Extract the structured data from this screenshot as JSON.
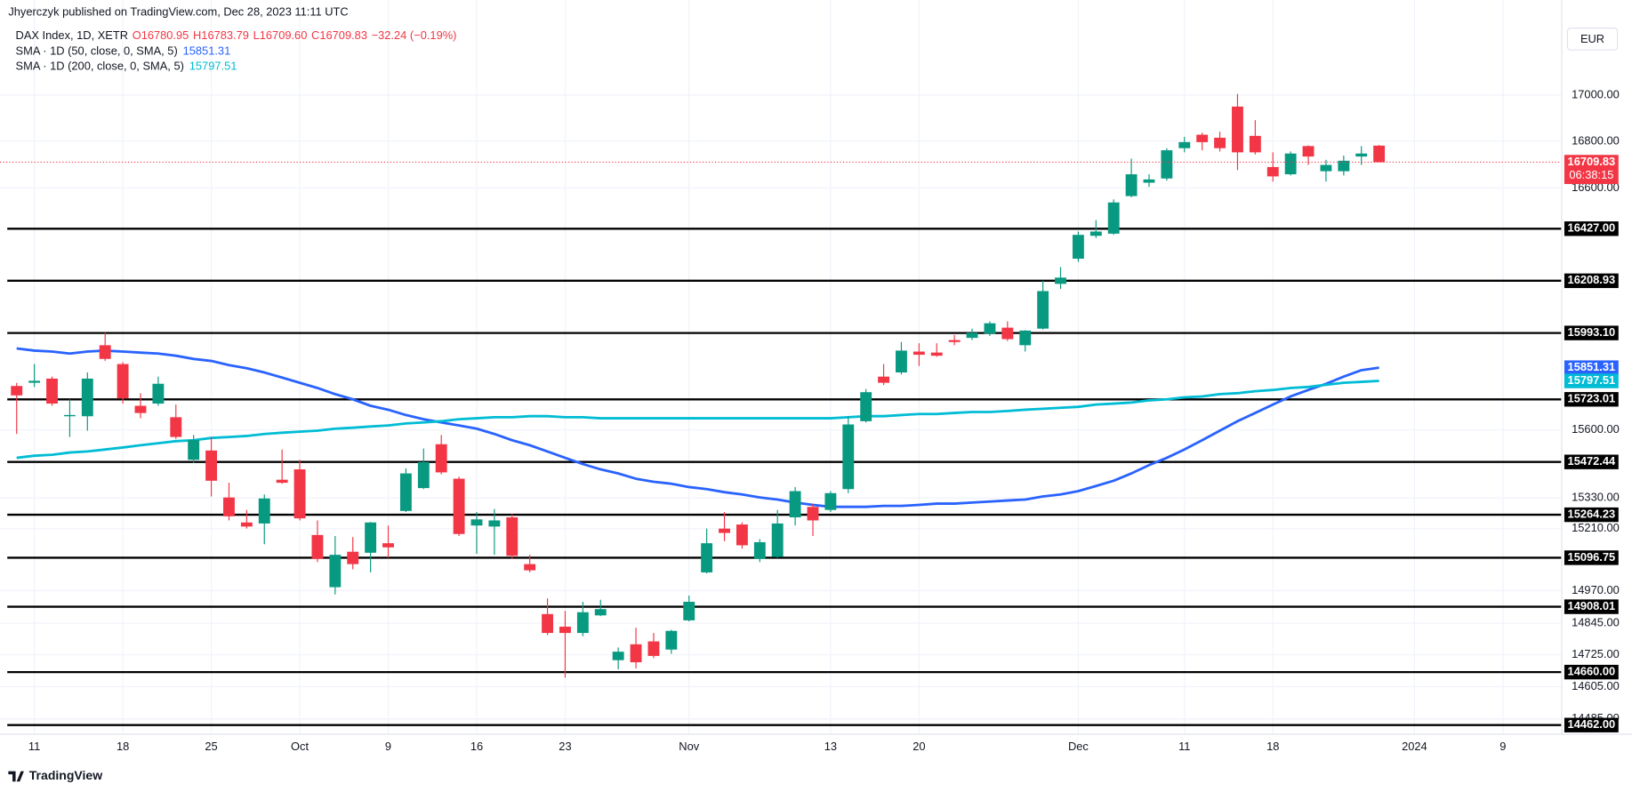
{
  "header": {
    "publisher": "Jhyerczyk published on TradingView.com, Dec 28, 2023 11:11 UTC"
  },
  "chart_data": {
    "type": "candlestick",
    "symbol": "DAX Index, 1D, XETR",
    "legend_ohlc": [
      "O16780.95",
      "H16783.79",
      "L16709.60",
      "C16709.83"
    ],
    "legend_change": "−32.24 (−0.19%)",
    "currency": "EUR",
    "countdown": "06:38:15",
    "log_scale": true,
    "grid": true,
    "up_color": "#089981",
    "down_color": "#f23645",
    "level_color": "#000000",
    "ylim": [
      14430,
      17420
    ],
    "yticks": [
      {
        "value": 17000,
        "label": "17000.00"
      },
      {
        "value": 16800,
        "label": "16800.00"
      },
      {
        "value": 16600,
        "label": "16600.00"
      },
      {
        "value": 15600,
        "label": "15600.00"
      },
      {
        "value": 15330,
        "label": "15330.00"
      },
      {
        "value": 15210,
        "label": "15210.00"
      },
      {
        "value": 14970,
        "label": "14970.00"
      },
      {
        "value": 14845,
        "label": "14845.00"
      },
      {
        "value": 14725,
        "label": "14725.00"
      },
      {
        "value": 14605,
        "label": "14605.00"
      },
      {
        "value": 14485,
        "label": "14485.00"
      }
    ],
    "levels": [
      {
        "value": 16427,
        "label": "16427.00"
      },
      {
        "value": 16208.93,
        "label": "16208.93"
      },
      {
        "value": 15993.1,
        "label": "15993.10"
      },
      {
        "value": 15723.01,
        "label": "15723.01"
      },
      {
        "value": 15472.44,
        "label": "15472.44"
      },
      {
        "value": 15264.23,
        "label": "15264.23"
      },
      {
        "value": 15096.75,
        "label": "15096.75"
      },
      {
        "value": 14908.01,
        "label": "14908.01"
      },
      {
        "value": 14660,
        "label": "14660.00"
      },
      {
        "value": 14462,
        "label": "14462.00"
      }
    ],
    "categories": [
      null,
      "11",
      null,
      null,
      null,
      null,
      "18",
      null,
      null,
      null,
      null,
      "25",
      null,
      null,
      null,
      null,
      "Oct",
      null,
      null,
      null,
      null,
      "9",
      null,
      null,
      null,
      null,
      "16",
      null,
      null,
      null,
      null,
      "23",
      null,
      null,
      null,
      null,
      null,
      null,
      "Nov",
      null,
      null,
      null,
      null,
      null,
      null,
      null,
      "13",
      null,
      null,
      null,
      null,
      "20",
      null,
      null,
      null,
      null,
      null,
      null,
      null,
      null,
      "Dec",
      null,
      null,
      null,
      null,
      null,
      "11",
      null,
      null,
      null,
      null,
      "18",
      null,
      null,
      null,
      null,
      null,
      null,
      null,
      "2024",
      null,
      null,
      null,
      null,
      "9",
      null,
      null,
      null
    ],
    "open": [
      15777,
      15790,
      15807,
      15655,
      15655,
      15943,
      15866,
      15697,
      15706,
      15651,
      15481,
      15518,
      15332,
      15234,
      15230,
      15402,
      15443,
      15185,
      14983,
      15120,
      15116,
      15153,
      15279,
      15369,
      15543,
      15406,
      15222,
      15218,
      15254,
      15072,
      14880,
      14832,
      14808,
      14875,
      14705,
      14765,
      14776,
      14745,
      14856,
      15040,
      15210,
      15226,
      15092,
      15100,
      15254,
      15295,
      15283,
      15365,
      15635,
      15815,
      15832,
      15917,
      15913,
      15964,
      15973,
      15990,
      16015,
      15943,
      16011,
      16196,
      16301,
      16397,
      16406,
      16565,
      16622,
      16640,
      16770,
      16828,
      16815,
      16950,
      16823,
      16689,
      16658,
      16779,
      16671,
      16671,
      16734,
      16780.95,
      null,
      null,
      null,
      null,
      null,
      null,
      null,
      null,
      null,
      null
    ],
    "high": [
      15790,
      15866,
      15815,
      15723,
      15832,
      15994,
      15874,
      15748,
      15815,
      15702,
      15580,
      15572,
      15390,
      15283,
      15344,
      15522,
      15481,
      15242,
      15181,
      15177,
      15236,
      15222,
      15447,
      15526,
      15580,
      15414,
      15275,
      15287,
      15267,
      15108,
      14940,
      14892,
      14927,
      14935,
      14753,
      14828,
      14808,
      14820,
      14951,
      15210,
      15275,
      15234,
      15169,
      15283,
      15373,
      15308,
      15357,
      15655,
      15765,
      15866,
      15956,
      15951,
      15951,
      15985,
      16011,
      16041,
      16041,
      16005,
      16209,
      16266,
      16415,
      16463,
      16551,
      16725,
      16658,
      16770,
      16819,
      16837,
      16841,
      17005,
      16891,
      16752,
      16756,
      16782,
      16720,
      16738,
      16779,
      16783.79,
      null,
      null,
      null,
      null,
      null,
      null,
      null,
      null,
      null,
      null
    ],
    "low": [
      15584,
      15773,
      15697,
      15572,
      15597,
      15879,
      15706,
      15647,
      15697,
      15564,
      15468,
      15336,
      15242,
      15210,
      15149,
      15386,
      15242,
      15080,
      14955,
      15052,
      15040,
      15096,
      15275,
      15365,
      15423,
      15181,
      15112,
      15108,
      15092,
      15040,
      14800,
      14639,
      14796,
      14872,
      14670,
      14674,
      14713,
      14729,
      14852,
      15036,
      15161,
      15132,
      15080,
      15096,
      15222,
      15181,
      15275,
      15349,
      15630,
      15781,
      15824,
      15858,
      15896,
      15943,
      15964,
      15981,
      15960,
      15917,
      16007,
      16175,
      16288,
      16388,
      16401,
      16560,
      16604,
      16631,
      16752,
      16761,
      16756,
      16676,
      16743,
      16627,
      16653,
      16698,
      16627,
      16653,
      16698,
      16709.6,
      null,
      null,
      null,
      null,
      null,
      null,
      null,
      null,
      null,
      null
    ],
    "close": [
      15739,
      15798,
      15706,
      15660,
      15807,
      15887,
      15727,
      15668,
      15786,
      15572,
      15560,
      15398,
      15258,
      15218,
      15328,
      15390,
      15250,
      15092,
      15108,
      15072,
      15234,
      15137,
      15427,
      15472,
      15431,
      15189,
      15246,
      15242,
      15104,
      15048,
      14808,
      14808,
      14887,
      14899,
      14737,
      14697,
      14721,
      14816,
      14927,
      15153,
      15193,
      15145,
      15157,
      15230,
      15357,
      15242,
      15349,
      15622,
      15752,
      15790,
      15921,
      15904,
      15900,
      15956,
      15994,
      16033,
      15968,
      16003,
      16166,
      16222,
      16401,
      16415,
      16538,
      16658,
      16636,
      16761,
      16796,
      16796,
      16770,
      16752,
      16752,
      16649,
      16747,
      16734,
      16698,
      16716,
      16747,
      16709.83,
      null,
      null,
      null,
      null,
      null,
      null,
      null,
      null,
      null,
      null
    ],
    "series": [
      {
        "name": "SMA · 1D (50, close, 0, SMA, 5)",
        "color": "#2962ff",
        "values": [
          15930,
          15921,
          15917,
          15909,
          15917,
          15921,
          15917,
          15913,
          15909,
          15900,
          15887,
          15879,
          15862,
          15849,
          15832,
          15811,
          15790,
          15769,
          15744,
          15723,
          15697,
          15681,
          15660,
          15643,
          15630,
          15618,
          15605,
          15584,
          15559,
          15539,
          15514,
          15489,
          15464,
          15443,
          15427,
          15406,
          15394,
          15386,
          15373,
          15365,
          15353,
          15344,
          15332,
          15324,
          15312,
          15303,
          15295,
          15295,
          15295,
          15299,
          15299,
          15303,
          15308,
          15308,
          15312,
          15316,
          15320,
          15324,
          15336,
          15344,
          15357,
          15377,
          15398,
          15427,
          15460,
          15489,
          15522,
          15559,
          15597,
          15635,
          15668,
          15702,
          15735,
          15761,
          15786,
          15815,
          15841,
          15851.31,
          null,
          null,
          null,
          null,
          null,
          null,
          null,
          null,
          null,
          null
        ]
      },
      {
        "name": "SMA · 1D (200, close, 0, SMA, 5)",
        "color": "#00bcd4",
        "values": [
          15489,
          15497,
          15501,
          15510,
          15514,
          15522,
          15530,
          15539,
          15547,
          15555,
          15559,
          15568,
          15572,
          15576,
          15584,
          15589,
          15593,
          15597,
          15605,
          15609,
          15614,
          15618,
          15626,
          15630,
          15635,
          15643,
          15647,
          15651,
          15651,
          15655,
          15655,
          15651,
          15651,
          15647,
          15647,
          15647,
          15647,
          15647,
          15647,
          15647,
          15647,
          15647,
          15647,
          15647,
          15647,
          15647,
          15647,
          15651,
          15655,
          15655,
          15660,
          15664,
          15664,
          15668,
          15672,
          15672,
          15676,
          15681,
          15685,
          15689,
          15693,
          15702,
          15706,
          15710,
          15719,
          15723,
          15731,
          15735,
          15744,
          15748,
          15756,
          15761,
          15769,
          15773,
          15782,
          15790,
          15794,
          15797.51,
          null,
          null,
          null,
          null,
          null,
          null,
          null,
          null,
          null,
          null
        ]
      }
    ]
  },
  "footer": {
    "brand": "TradingView"
  }
}
